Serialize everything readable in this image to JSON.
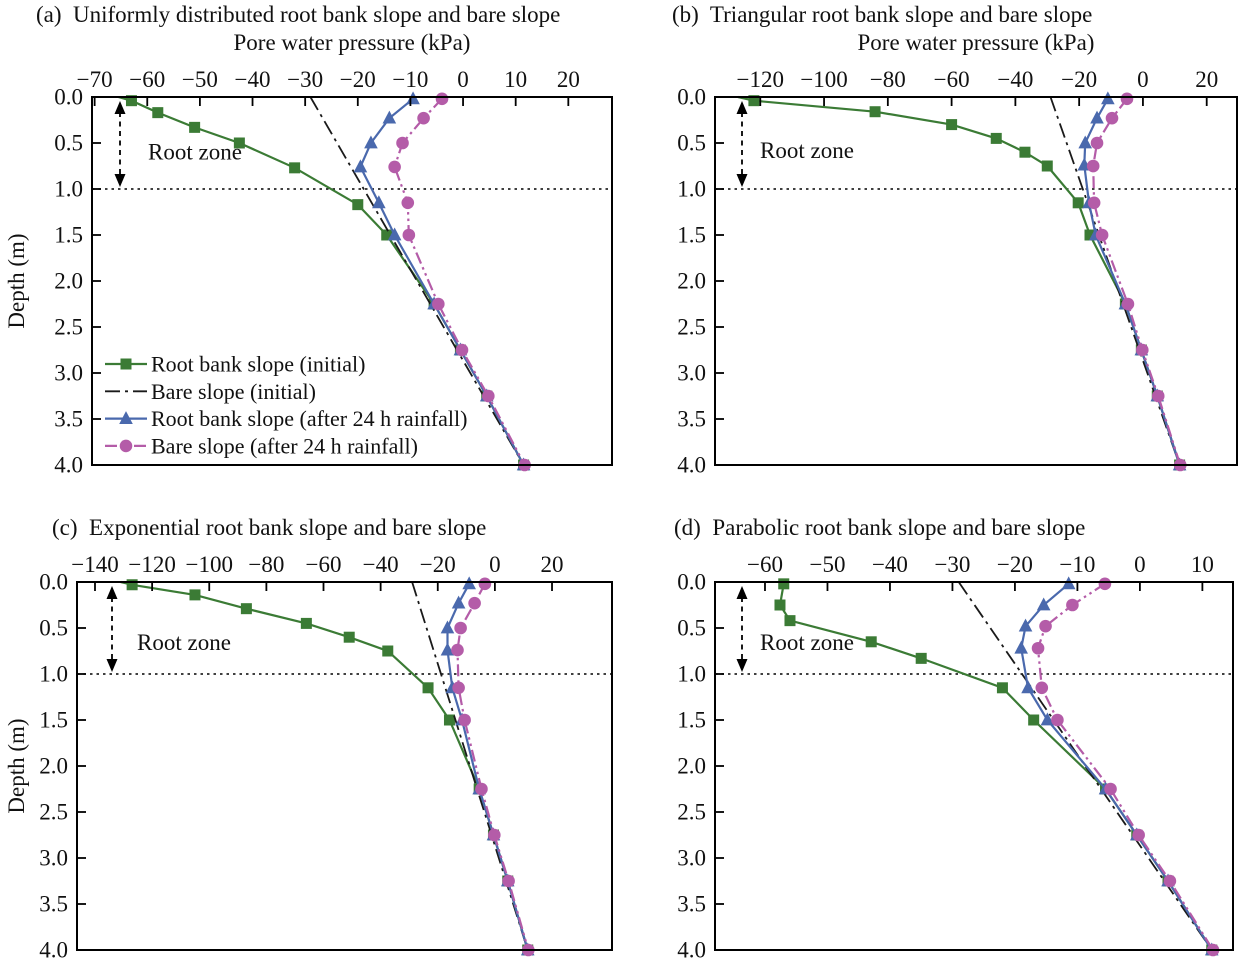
{
  "figure": {
    "background": "#ffffff",
    "depth_axis_label": "Depth (m)",
    "pressure_axis_label": "Pore water pressure (kPa)"
  },
  "chart_data": [
    {
      "id": "a",
      "type": "line",
      "title": "(a)  Uniformly distributed root bank slope and bare slope",
      "xlabel": "Pore water pressure (kPa)",
      "ylabel": "Depth (m)",
      "xlim": [
        -70.5,
        28.3
      ],
      "ylim": [
        0,
        4
      ],
      "xtick_values": [
        -70,
        -60,
        -50,
        -40,
        -30,
        -20,
        -10,
        0,
        10,
        20
      ],
      "xtick_labels": [
        "−70",
        "−60",
        "−50",
        "−40",
        "−30",
        "−20",
        "−10",
        "0",
        "10",
        "20"
      ],
      "ytick_values": [
        0,
        0.5,
        1,
        1.5,
        2,
        2.5,
        3,
        3.5,
        4
      ],
      "ytick_labels": [
        "0.0",
        "0.5",
        "1.0",
        "1.5",
        "2.0",
        "2.5",
        "3.0",
        "3.5",
        "4.0"
      ],
      "root_zone": {
        "label": "Root zone",
        "from_depth": 0,
        "to_depth": 1.0,
        "boundary_depth": 1.0
      },
      "legend": true,
      "series": [
        {
          "slug": "root-bank-initial",
          "name": "Root bank slope (initial)",
          "color": "#3b7b35",
          "marker": "square",
          "line": "solid",
          "width": 2.2,
          "lead": [
            -65.5,
            0
          ],
          "points": [
            [
              -63,
              0.04
            ],
            [
              -58,
              0.17
            ],
            [
              -51,
              0.33
            ],
            [
              -42.5,
              0.5
            ],
            [
              -32,
              0.77
            ],
            [
              -20,
              1.17
            ],
            [
              -14.5,
              1.5
            ],
            [
              -5.5,
              2.25
            ],
            [
              -0.5,
              2.75
            ],
            [
              4.5,
              3.25
            ],
            [
              11.5,
              4
            ]
          ]
        },
        {
          "slug": "bare-initial",
          "name": "Bare slope (initial)",
          "color": "#1a1a1a",
          "marker": "none",
          "line": "dashdot",
          "width": 1.8,
          "points": [
            [
              -29,
              0
            ],
            [
              11.5,
              4
            ]
          ]
        },
        {
          "slug": "root-bank-rain",
          "name": "Root bank slope (after 24 h rainfall)",
          "color": "#4a69ad",
          "marker": "triangle",
          "line": "solid",
          "width": 2.2,
          "points": [
            [
              -9.5,
              0.02
            ],
            [
              -14,
              0.23
            ],
            [
              -17.5,
              0.5
            ],
            [
              -19.5,
              0.76
            ],
            [
              -16,
              1.15
            ],
            [
              -13,
              1.5
            ],
            [
              -5.5,
              2.25
            ],
            [
              -0.5,
              2.75
            ],
            [
              4.5,
              3.25
            ],
            [
              11.5,
              4
            ]
          ]
        },
        {
          "slug": "bare-rain",
          "name": "Bare slope (after 24 h rainfall)",
          "color": "#b45ca8",
          "marker": "circle",
          "line": "dashdotdot",
          "width": 2.2,
          "points": [
            [
              -4,
              0.02
            ],
            [
              -7.5,
              0.23
            ],
            [
              -11.5,
              0.5
            ],
            [
              -13,
              0.76
            ],
            [
              -10.5,
              1.15
            ],
            [
              -10.3,
              1.5
            ],
            [
              -4.7,
              2.25
            ],
            [
              -0.2,
              2.75
            ],
            [
              4.8,
              3.25
            ],
            [
              11.7,
              4
            ]
          ]
        }
      ]
    },
    {
      "id": "b",
      "type": "line",
      "title": "(b)  Triangular root bank slope and bare slope",
      "xlabel": "Pore water pressure (kPa)",
      "xlim": [
        -134.2,
        29.5
      ],
      "ylim": [
        0,
        4
      ],
      "xtick_values": [
        -120,
        -100,
        -80,
        -60,
        -40,
        -20,
        0,
        20
      ],
      "xtick_labels": [
        "−120",
        "−100",
        "−80",
        "−60",
        "−40",
        "−20",
        "0",
        "20"
      ],
      "ytick_values": [
        0,
        0.5,
        1,
        1.5,
        2,
        2.5,
        3,
        3.5,
        4
      ],
      "ytick_labels": [
        "0.0",
        "0.5",
        "1.0",
        "1.5",
        "2.0",
        "2.5",
        "3.0",
        "3.5",
        "4.0"
      ],
      "root_zone": {
        "label": "Root zone",
        "from_depth": 0,
        "to_depth": 1.0,
        "boundary_depth": 1.0
      },
      "legend": false,
      "series": [
        {
          "slug": "root-bank-initial",
          "name": "Root bank slope (initial)",
          "color": "#3b7b35",
          "marker": "square",
          "line": "solid",
          "width": 2.2,
          "lead": [
            -127,
            0
          ],
          "points": [
            [
              -122,
              0.04
            ],
            [
              -84,
              0.16
            ],
            [
              -60,
              0.3
            ],
            [
              -46,
              0.45
            ],
            [
              -37,
              0.6
            ],
            [
              -30,
              0.75
            ],
            [
              -20.3,
              1.15
            ],
            [
              -16.6,
              1.5
            ],
            [
              -5.5,
              2.25
            ],
            [
              -0.5,
              2.75
            ],
            [
              4.5,
              3.25
            ],
            [
              11.5,
              4
            ]
          ]
        },
        {
          "slug": "bare-initial",
          "name": "Bare slope (initial)",
          "color": "#1a1a1a",
          "marker": "none",
          "line": "dashdot",
          "width": 1.8,
          "points": [
            [
              -29,
              0
            ],
            [
              11.5,
              4
            ]
          ]
        },
        {
          "slug": "root-bank-rain",
          "name": "Root bank slope (after 24 h rainfall)",
          "color": "#4a69ad",
          "marker": "triangle",
          "line": "solid",
          "width": 2.2,
          "points": [
            [
              -11,
              0.02
            ],
            [
              -14.4,
              0.23
            ],
            [
              -18.1,
              0.5
            ],
            [
              -18.4,
              0.74
            ],
            [
              -16.9,
              1.15
            ],
            [
              -14.8,
              1.5
            ],
            [
              -5.5,
              2.25
            ],
            [
              -0.5,
              2.75
            ],
            [
              4.5,
              3.25
            ],
            [
              11.5,
              4
            ]
          ]
        },
        {
          "slug": "bare-rain",
          "name": "Bare slope (after 24 h rainfall)",
          "color": "#b45ca8",
          "marker": "circle",
          "line": "dashdotdot",
          "width": 2.2,
          "points": [
            [
              -5,
              0.02
            ],
            [
              -9.7,
              0.23
            ],
            [
              -14.4,
              0.5
            ],
            [
              -15.6,
              0.75
            ],
            [
              -15.3,
              1.15
            ],
            [
              -12.8,
              1.5
            ],
            [
              -4.7,
              2.25
            ],
            [
              -0.2,
              2.75
            ],
            [
              4.8,
              3.25
            ],
            [
              11.7,
              4
            ]
          ]
        }
      ]
    },
    {
      "id": "c",
      "type": "line",
      "title": "(c)  Exponential root bank slope and bare slope",
      "ylabel": "Depth (m)",
      "xlim": [
        -146.3,
        41
      ],
      "ylim": [
        0,
        4
      ],
      "xtick_values": [
        -140,
        -120,
        -100,
        -80,
        -60,
        -40,
        -20,
        0,
        20
      ],
      "xtick_labels": [
        "−140",
        "−120",
        "−100",
        "−80",
        "−60",
        "−40",
        "−20",
        "0",
        "20"
      ],
      "ytick_values": [
        0,
        0.5,
        1,
        1.5,
        2,
        2.5,
        3,
        3.5,
        4
      ],
      "ytick_labels": [
        "0.0",
        "0.5",
        "1.0",
        "1.5",
        "2.0",
        "2.5",
        "3.0",
        "3.5",
        "4.0"
      ],
      "root_zone": {
        "label": "Root zone",
        "from_depth": 0,
        "to_depth": 1.0,
        "boundary_depth": 1.0
      },
      "legend": false,
      "series": [
        {
          "slug": "root-bank-initial",
          "name": "Root bank slope (initial)",
          "color": "#3b7b35",
          "marker": "square",
          "line": "solid",
          "width": 2.2,
          "lead": [
            -131,
            0
          ],
          "points": [
            [
              -127,
              0.03
            ],
            [
              -105,
              0.14
            ],
            [
              -87,
              0.29
            ],
            [
              -66,
              0.45
            ],
            [
              -51,
              0.6
            ],
            [
              -37.5,
              0.75
            ],
            [
              -23.4,
              1.15
            ],
            [
              -15.9,
              1.5
            ],
            [
              -5.5,
              2.25
            ],
            [
              -0.5,
              2.75
            ],
            [
              4.5,
              3.25
            ],
            [
              11.5,
              4
            ]
          ]
        },
        {
          "slug": "bare-initial",
          "name": "Bare slope (initial)",
          "color": "#1a1a1a",
          "marker": "none",
          "line": "dashdot",
          "width": 1.8,
          "points": [
            [
              -29,
              0
            ],
            [
              11.5,
              4
            ]
          ]
        },
        {
          "slug": "root-bank-rain",
          "name": "Root bank slope (after 24 h rainfall)",
          "color": "#4a69ad",
          "marker": "triangle",
          "line": "solid",
          "width": 2.2,
          "points": [
            [
              -9,
              0.02
            ],
            [
              -12.7,
              0.23
            ],
            [
              -16.6,
              0.5
            ],
            [
              -16.6,
              0.74
            ],
            [
              -14.9,
              1.15
            ],
            [
              -11.5,
              1.5
            ],
            [
              -5.5,
              2.25
            ],
            [
              -0.5,
              2.75
            ],
            [
              4.5,
              3.25
            ],
            [
              11.5,
              4
            ]
          ]
        },
        {
          "slug": "bare-rain",
          "name": "Bare slope (after 24 h rainfall)",
          "color": "#b45ca8",
          "marker": "circle",
          "line": "dashdotdot",
          "width": 2.2,
          "points": [
            [
              -3.5,
              0.02
            ],
            [
              -7.1,
              0.23
            ],
            [
              -12,
              0.5
            ],
            [
              -13.1,
              0.74
            ],
            [
              -12.7,
              1.15
            ],
            [
              -10.6,
              1.5
            ],
            [
              -4.7,
              2.25
            ],
            [
              -0.2,
              2.75
            ],
            [
              4.8,
              3.25
            ],
            [
              11.7,
              4
            ]
          ]
        }
      ]
    },
    {
      "id": "d",
      "type": "line",
      "title": "(d)  Parabolic root bank slope and bare slope",
      "xlim": [
        -68,
        14.9
      ],
      "ylim": [
        0,
        4
      ],
      "xtick_values": [
        -60,
        -50,
        -40,
        -30,
        -20,
        -10,
        0,
        10
      ],
      "xtick_labels": [
        "−60",
        "−50",
        "−40",
        "−30",
        "−20",
        "−10",
        "0",
        "10"
      ],
      "ytick_values": [
        0,
        0.5,
        1,
        1.5,
        2,
        2.5,
        3,
        3.5,
        4
      ],
      "ytick_labels": [
        "0.0",
        "0.5",
        "1.0",
        "1.5",
        "2.0",
        "2.5",
        "3.0",
        "3.5",
        "4.0"
      ],
      "root_zone": {
        "label": "Root zone",
        "from_depth": 0,
        "to_depth": 1.0,
        "boundary_depth": 1.0
      },
      "legend": false,
      "series": [
        {
          "slug": "root-bank-initial",
          "name": "Root bank slope (initial)",
          "color": "#3b7b35",
          "marker": "square",
          "line": "solid",
          "width": 2.2,
          "points": [
            [
              -57,
              0.02
            ],
            [
              -57.6,
              0.25
            ],
            [
              -56,
              0.42
            ],
            [
              -43,
              0.65
            ],
            [
              -35,
              0.83
            ],
            [
              -22,
              1.15
            ],
            [
              -17,
              1.5
            ],
            [
              -5.5,
              2.25
            ],
            [
              -0.5,
              2.75
            ],
            [
              4.5,
              3.25
            ],
            [
              11.5,
              4
            ]
          ]
        },
        {
          "slug": "bare-initial",
          "name": "Bare slope (initial)",
          "color": "#1a1a1a",
          "marker": "none",
          "line": "dashdot",
          "width": 1.8,
          "points": [
            [
              -29,
              0
            ],
            [
              11.5,
              4
            ]
          ]
        },
        {
          "slug": "root-bank-rain",
          "name": "Root bank slope (after 24 h rainfall)",
          "color": "#4a69ad",
          "marker": "triangle",
          "line": "solid",
          "width": 2.2,
          "points": [
            [
              -11.4,
              0.02
            ],
            [
              -15.4,
              0.25
            ],
            [
              -18.3,
              0.48
            ],
            [
              -19,
              0.72
            ],
            [
              -17.9,
              1.15
            ],
            [
              -14.8,
              1.5
            ],
            [
              -5.5,
              2.25
            ],
            [
              -0.5,
              2.75
            ],
            [
              4.5,
              3.25
            ],
            [
              11.5,
              4
            ]
          ]
        },
        {
          "slug": "bare-rain",
          "name": "Bare slope (after 24 h rainfall)",
          "color": "#b45ca8",
          "marker": "circle",
          "line": "dashdotdot",
          "width": 2.2,
          "points": [
            [
              -5.6,
              0.02
            ],
            [
              -10.8,
              0.25
            ],
            [
              -15.1,
              0.48
            ],
            [
              -16.3,
              0.72
            ],
            [
              -15.7,
              1.15
            ],
            [
              -13.2,
              1.5
            ],
            [
              -4.7,
              2.25
            ],
            [
              -0.2,
              2.75
            ],
            [
              4.8,
              3.25
            ],
            [
              11.7,
              4
            ]
          ]
        }
      ]
    }
  ]
}
